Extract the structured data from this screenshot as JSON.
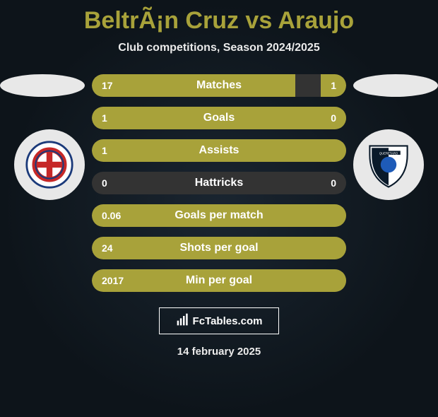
{
  "title": "BeltrÃ¡n Cruz vs Araujo",
  "subtitle": "Club competitions, Season 2024/2025",
  "date": "14 february 2025",
  "brand": {
    "text": "FcTables.com"
  },
  "colors": {
    "accent": "#a8a23a",
    "bar_bg": "#333333",
    "halo": "#e8e8e8"
  },
  "bars": [
    {
      "label": "Matches",
      "left": "17",
      "right": "1",
      "left_pct": 80,
      "right_pct": 10
    },
    {
      "label": "Goals",
      "left": "1",
      "right": "0",
      "left_pct": 100,
      "right_pct": 0
    },
    {
      "label": "Assists",
      "left": "1",
      "right": "",
      "left_pct": 100,
      "right_pct": 0
    },
    {
      "label": "Hattricks",
      "left": "0",
      "right": "0",
      "left_pct": 0,
      "right_pct": 0
    },
    {
      "label": "Goals per match",
      "left": "0.06",
      "right": "",
      "left_pct": 100,
      "right_pct": 0
    },
    {
      "label": "Shots per goal",
      "left": "24",
      "right": "",
      "left_pct": 100,
      "right_pct": 0
    },
    {
      "label": "Min per goal",
      "left": "2017",
      "right": "",
      "left_pct": 100,
      "right_pct": 0
    }
  ]
}
